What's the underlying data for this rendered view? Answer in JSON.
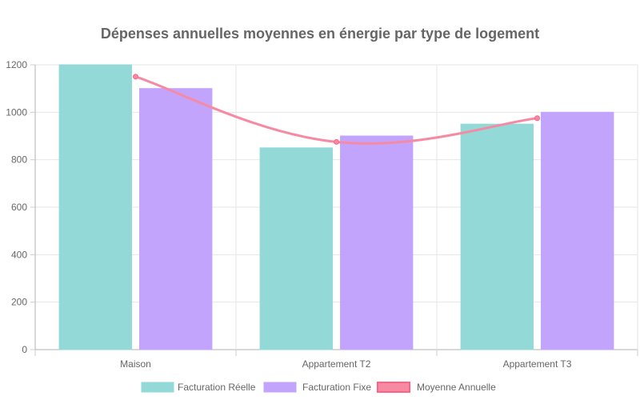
{
  "chart_data": {
    "type": "bar",
    "title": "Dépenses annuelles moyennes en énergie par type de logement",
    "categories": [
      "Maison",
      "Appartement T2",
      "Appartement T3"
    ],
    "ylim": [
      0,
      1200
    ],
    "yticks": [
      0,
      200,
      400,
      600,
      800,
      1000,
      1200
    ],
    "grid": true,
    "legend_position": "bottom",
    "series": [
      {
        "name": "Facturation Réelle",
        "type": "bar",
        "values": [
          1200,
          850,
          950
        ],
        "color": "#4bc0c0",
        "fill": "#93d9d7"
      },
      {
        "name": "Facturation Fixe",
        "type": "bar",
        "values": [
          1100,
          900,
          1000
        ],
        "color": "#9966ff",
        "fill": "#c2a4fd"
      },
      {
        "name": "Moyenne Annuelle",
        "type": "line",
        "values": [
          1150,
          875,
          975
        ],
        "color": "#ff6384",
        "fill": "#f78aa3"
      }
    ]
  }
}
